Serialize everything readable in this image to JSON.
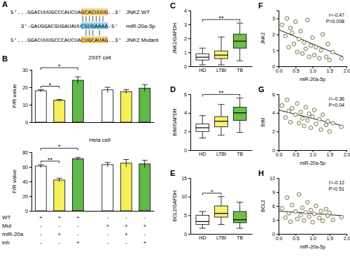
{
  "chart_data": [
    {
      "type": "sequence",
      "label": "A",
      "rows": [
        {
          "parts": [
            "5'...GGACUUUGCCCAUCUA",
            "GCACUUUG",
            "..3'"
          ],
          "name": "JNK2 WT"
        },
        {
          "parts": [
            "3'-GAUGGACGUGAUAUU",
            "CGUGAAAA",
            "-5'"
          ],
          "name": "miR-20a-5p"
        },
        {
          "parts": [
            "5'...GGACUUUGCCCAUCUA",
            "CUGCAUAG",
            "..3'"
          ],
          "name": "JNK2 Mutant"
        }
      ]
    },
    {
      "type": "bar",
      "label": "B",
      "title": "293T cell",
      "ylabel": "F/R value",
      "categories": [
        null,
        null,
        null,
        null,
        null,
        null
      ],
      "values": [
        18,
        12.5,
        24,
        18.5,
        17.5,
        19.5
      ],
      "errors": [
        0.6,
        0.5,
        2,
        1.5,
        1.2,
        2
      ],
      "colors": [
        "#ffffff",
        "#f4ef5a",
        "#5fb84a",
        "#ffffff",
        "#f4ef5a",
        "#5fb84a"
      ],
      "ylim": [
        0,
        30
      ],
      "yticks": [
        0,
        10,
        20,
        30
      ],
      "annotations": [
        {
          "text": "*",
          "from": 0,
          "to": 1
        },
        {
          "text": "*",
          "from": 0,
          "to": 2
        }
      ]
    },
    {
      "type": "bar",
      "title": "Hela cell",
      "ylabel": "F/R value",
      "categories": [
        null,
        null,
        null,
        null,
        null,
        null
      ],
      "values": [
        61,
        42,
        71,
        63,
        65,
        64
      ],
      "errors": [
        2,
        2.5,
        2,
        3,
        5,
        5
      ],
      "colors": [
        "#ffffff",
        "#f4ef5a",
        "#5fb84a",
        "#ffffff",
        "#f4ef5a",
        "#5fb84a"
      ],
      "ylim": [
        0,
        80
      ],
      "yticks": [
        0,
        20,
        40,
        60,
        80
      ],
      "annotations": [
        {
          "text": "**",
          "from": 0,
          "to": 1
        },
        {
          "text": "*",
          "from": 0,
          "to": 2
        }
      ],
      "condition_table": {
        "rows": [
          {
            "name": "WT",
            "values": [
              "+",
              "+",
              "+",
              "-",
              "-",
              "-"
            ]
          },
          {
            "name": "Mut",
            "values": [
              "-",
              "-",
              "-",
              "+",
              "+",
              "+"
            ]
          },
          {
            "name": "miR-20a",
            "values": [
              "-",
              "+",
              "-",
              "-",
              "+",
              "-"
            ]
          },
          {
            "name": "inh",
            "values": [
              "-",
              "-",
              "+",
              "-",
              "-",
              "+"
            ]
          }
        ]
      }
    },
    {
      "type": "box",
      "label": "C",
      "ylabel": "JNK2/GAPDH",
      "categories": [
        "HD",
        "LTBI",
        "TB"
      ],
      "min": [
        0.1,
        0.1,
        0.4
      ],
      "q1": [
        0.45,
        0.55,
        1.3
      ],
      "median": [
        0.65,
        0.8,
        1.8
      ],
      "q3": [
        0.9,
        1.1,
        2.3
      ],
      "max": [
        1.3,
        2.1,
        3.1
      ],
      "colors": [
        "#ffffff",
        "#f6f07c",
        "#6fbf4a"
      ],
      "ylim": [
        0,
        4
      ],
      "yticks": [
        0,
        1,
        2,
        3,
        4
      ],
      "annotations": [
        {
          "text": "**",
          "from": 0,
          "to": 2
        }
      ]
    },
    {
      "type": "box",
      "label": "D",
      "ylabel": "BIM/GAPDH",
      "categories": [
        "HD",
        "LTBI",
        "TB"
      ],
      "min": [
        1.3,
        1.6,
        1.9
      ],
      "q1": [
        2.0,
        2.5,
        3.2
      ],
      "median": [
        2.4,
        3.1,
        4.0
      ],
      "q3": [
        2.8,
        3.6,
        4.6
      ],
      "max": [
        3.7,
        4.9,
        5.6
      ],
      "colors": [
        "#ffffff",
        "#f6f07c",
        "#6fbf4a"
      ],
      "ylim": [
        0,
        6
      ],
      "yticks": [
        0,
        2,
        4,
        6
      ],
      "annotations": [
        {
          "text": "**",
          "from": 0,
          "to": 2
        }
      ]
    },
    {
      "type": "box",
      "label": "E",
      "ylabel": "BCL2/GAPDH",
      "categories": [
        "HD",
        "LTBI",
        "TB"
      ],
      "min": [
        1.5,
        2.5,
        1.5
      ],
      "q1": [
        2.5,
        4.5,
        3.0
      ],
      "median": [
        3.3,
        5.5,
        3.8
      ],
      "q3": [
        5.0,
        7.5,
        6.0
      ],
      "max": [
        6.0,
        10.0,
        8.5
      ],
      "colors": [
        "#ffffff",
        "#f6f07c",
        "#6fbf4a"
      ],
      "ylim": [
        0,
        15
      ],
      "yticks": [
        0,
        5,
        10,
        15
      ],
      "annotations": [
        {
          "text": "*",
          "from": 0,
          "to": 1
        }
      ]
    },
    {
      "type": "scatter",
      "label": "F",
      "xlabel": "miR-20a-5p",
      "ylabel": "JNK2",
      "x": [
        0.1,
        0.2,
        0.25,
        0.3,
        0.35,
        0.4,
        0.45,
        0.5,
        0.55,
        0.6,
        0.65,
        0.7,
        0.75,
        0.8,
        0.85,
        0.9,
        0.95,
        1.0,
        1.05,
        1.1,
        1.2,
        1.25,
        1.3,
        1.4,
        1.45,
        1.5,
        1.6,
        1.85
      ],
      "values": [
        2.6,
        1.9,
        3.0,
        1.2,
        2.4,
        2.1,
        1.4,
        2.8,
        0.9,
        1.7,
        2.2,
        0.8,
        1.5,
        1.1,
        2.9,
        0.6,
        1.3,
        1.8,
        0.7,
        1.2,
        0.5,
        1.0,
        2.0,
        0.6,
        1.4,
        0.4,
        0.9,
        0.5
      ],
      "xlim": [
        0,
        2
      ],
      "xticks": [
        {
          "value": 0,
          "label": "0.0"
        },
        0.5,
        {
          "value": 1,
          "label": "1.0"
        },
        1.5,
        {
          "value": 2,
          "label": "2.0"
        }
      ],
      "ylim": [
        0,
        3.5
      ],
      "yticks": [
        0,
        1,
        2,
        3
      ],
      "color": "#fbf6cf",
      "marker": "circle",
      "annotations": [
        "r=-0.47",
        "P=0.008"
      ],
      "trend_line": {
        "x": [
          0,
          1.9
        ],
        "y": [
          2.3,
          0.6
        ]
      }
    },
    {
      "type": "scatter",
      "label": "G",
      "xlabel": "miR-20a-5p",
      "ylabel": "BIM",
      "x": [
        0.1,
        0.2,
        0.25,
        0.3,
        0.35,
        0.4,
        0.5,
        0.55,
        0.6,
        0.65,
        0.7,
        0.75,
        0.8,
        0.85,
        0.9,
        0.95,
        1.0,
        1.05,
        1.1,
        1.2,
        1.25,
        1.3,
        1.4,
        1.45,
        1.5,
        1.6,
        1.85
      ],
      "values": [
        4.8,
        3.5,
        5.4,
        4.2,
        3.0,
        4.5,
        3.8,
        5.0,
        2.9,
        4.1,
        3.4,
        2.6,
        4.6,
        3.2,
        3.9,
        2.4,
        3.6,
        4.3,
        2.8,
        3.3,
        2.2,
        3.8,
        2.7,
        3.1,
        2.0,
        2.9,
        2.5
      ],
      "xlim": [
        0,
        2
      ],
      "xticks": [
        {
          "value": 0,
          "label": "0.0"
        },
        0.5,
        {
          "value": 1,
          "label": "1.0"
        },
        1.5,
        {
          "value": 2,
          "label": "2.0"
        }
      ],
      "ylim": [
        0,
        6
      ],
      "yticks": [
        0,
        2,
        4,
        6
      ],
      "color": "#fbf6cf",
      "marker": "circle",
      "annotations": [
        "r=-0.36",
        "P=0.04"
      ],
      "trend_line": {
        "x": [
          0,
          1.9
        ],
        "y": [
          4.3,
          2.6
        ]
      }
    },
    {
      "type": "scatter",
      "label": "H",
      "xlabel": "miR-20a-5p",
      "ylabel": "BCL2",
      "x": [
        0.1,
        0.2,
        0.25,
        0.3,
        0.35,
        0.4,
        0.5,
        0.55,
        0.6,
        0.65,
        0.7,
        0.75,
        0.8,
        0.85,
        0.9,
        0.95,
        1.0,
        1.05,
        1.1,
        1.2,
        1.25,
        1.3,
        1.4,
        1.45,
        1.5,
        1.6,
        1.85
      ],
      "values": [
        5.5,
        3.5,
        7.8,
        4.4,
        2.6,
        6.2,
        4.8,
        3.2,
        8.5,
        4.0,
        5.6,
        2.9,
        4.6,
        6.8,
        3.7,
        5.1,
        2.5,
        4.3,
        6.0,
        3.4,
        4.9,
        2.8,
        5.3,
        3.9,
        4.5,
        3.0,
        3.6
      ],
      "xlim": [
        0,
        2
      ],
      "xticks": [
        {
          "value": 0,
          "label": "0.0"
        },
        0.5,
        {
          "value": 1,
          "label": "1.0"
        },
        1.5,
        {
          "value": 2,
          "label": "2.0"
        }
      ],
      "ylim": [
        0,
        12
      ],
      "yticks": [
        0,
        3,
        6,
        9,
        12
      ],
      "color": "#fbf6cf",
      "marker": "circle",
      "annotations": [
        "r=-0.12",
        "P=0.51"
      ],
      "trend_line": {
        "x": [
          0,
          1.9
        ],
        "y": [
          4.9,
          3.9
        ]
      }
    }
  ]
}
